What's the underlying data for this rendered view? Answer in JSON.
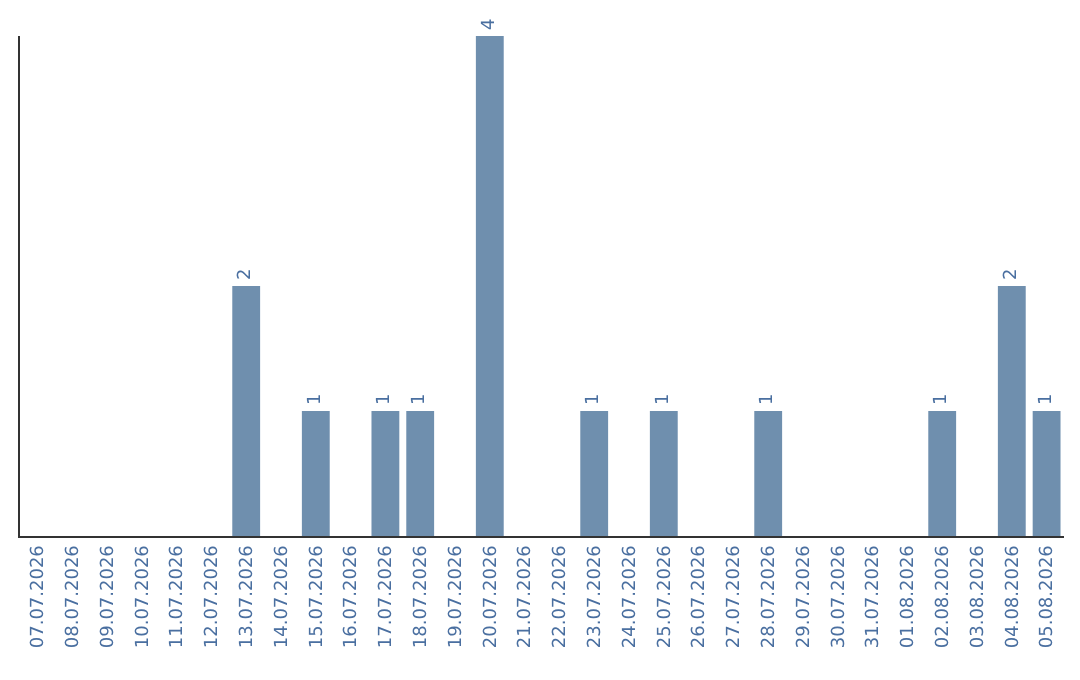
{
  "chart_data": {
    "type": "bar",
    "categories": [
      "07.07.2026",
      "08.07.2026",
      "09.07.2026",
      "10.07.2026",
      "11.07.2026",
      "12.07.2026",
      "13.07.2026",
      "14.07.2026",
      "15.07.2026",
      "16.07.2026",
      "17.07.2026",
      "18.07.2026",
      "19.07.2026",
      "20.07.2026",
      "21.07.2026",
      "22.07.2026",
      "23.07.2026",
      "24.07.2026",
      "25.07.2026",
      "26.07.2026",
      "27.07.2026",
      "28.07.2026",
      "29.07.2026",
      "30.07.2026",
      "31.07.2026",
      "01.08.2026",
      "02.08.2026",
      "03.08.2026",
      "04.08.2026",
      "05.08.2026"
    ],
    "values": [
      0,
      0,
      0,
      0,
      0,
      0,
      2,
      0,
      1,
      0,
      1,
      1,
      0,
      4,
      0,
      0,
      1,
      0,
      1,
      0,
      0,
      1,
      0,
      0,
      0,
      0,
      1,
      0,
      2,
      1
    ],
    "value_labels": [
      null,
      null,
      null,
      null,
      null,
      null,
      "2",
      null,
      "1",
      null,
      "1",
      "1",
      null,
      "4",
      null,
      null,
      "1",
      null,
      "1",
      null,
      null,
      "1",
      null,
      null,
      null,
      null,
      "1",
      null,
      "2",
      "1"
    ],
    "color": "#6f8fae",
    "ylim": [
      0,
      4
    ],
    "tick_labels": "x",
    "legend": false
  }
}
